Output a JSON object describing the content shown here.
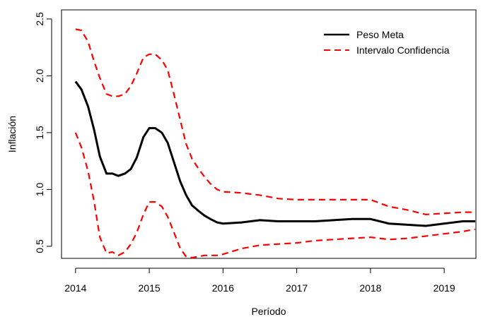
{
  "chart_data": {
    "type": "line",
    "x_label": "Período",
    "y_label": "Inflación",
    "x": [
      2014,
      2014.08,
      2014.17,
      2014.25,
      2014.33,
      2014.42,
      2014.5,
      2014.58,
      2014.67,
      2014.75,
      2014.83,
      2014.92,
      2015,
      2015.08,
      2015.17,
      2015.25,
      2015.33,
      2015.42,
      2015.5,
      2015.58,
      2015.67,
      2015.75,
      2015.83,
      2015.92,
      2016,
      2016.25,
      2016.5,
      2016.75,
      2017,
      2017.25,
      2017.5,
      2017.75,
      2018,
      2018.25,
      2018.5,
      2018.75,
      2019,
      2019.25,
      2019.42
    ],
    "series": [
      {
        "name": "Peso Meta",
        "color": "#000000",
        "dash": "solid",
        "values": [
          1.95,
          1.88,
          1.73,
          1.53,
          1.29,
          1.14,
          1.14,
          1.12,
          1.14,
          1.18,
          1.28,
          1.46,
          1.54,
          1.54,
          1.5,
          1.41,
          1.25,
          1.07,
          0.95,
          0.86,
          0.81,
          0.77,
          0.74,
          0.71,
          0.7,
          0.71,
          0.73,
          0.72,
          0.72,
          0.72,
          0.73,
          0.74,
          0.74,
          0.7,
          0.69,
          0.68,
          0.7,
          0.72,
          0.72
        ]
      },
      {
        "name": "Intervalo Confidencia",
        "color": "#ff0000",
        "dash": "dashed",
        "values": [
          2.41,
          2.4,
          2.3,
          2.13,
          1.98,
          1.84,
          1.82,
          1.82,
          1.84,
          1.91,
          2.02,
          2.16,
          2.19,
          2.19,
          2.14,
          2.05,
          1.85,
          1.61,
          1.4,
          1.27,
          1.18,
          1.11,
          1.05,
          1.0,
          0.98,
          0.97,
          0.95,
          0.92,
          0.91,
          0.91,
          0.91,
          0.91,
          0.91,
          0.85,
          0.82,
          0.78,
          0.79,
          0.8,
          0.8
        ]
      },
      {
        "color": "#ff0000",
        "dash": "dashed",
        "values": [
          1.5,
          1.37,
          1.16,
          0.9,
          0.58,
          0.44,
          0.45,
          0.42,
          0.45,
          0.52,
          0.62,
          0.78,
          0.89,
          0.89,
          0.85,
          0.76,
          0.63,
          0.48,
          0.41,
          0.4,
          0.41,
          0.42,
          0.42,
          0.42,
          0.43,
          0.48,
          0.51,
          0.52,
          0.53,
          0.55,
          0.56,
          0.57,
          0.58,
          0.56,
          0.57,
          0.59,
          0.61,
          0.63,
          0.65
        ]
      }
    ],
    "xlim": [
      2013.81,
      2019.43
    ],
    "xticks": [
      2014,
      2015,
      2016,
      2017,
      2018,
      2019
    ],
    "ylim": [
      0.394,
      2.58
    ],
    "yticks": [
      0.5,
      {
        "value": 1,
        "label": "1.0"
      },
      1.5,
      {
        "value": 2,
        "label": "2.0"
      },
      2.5
    ],
    "legend": "top-right"
  }
}
